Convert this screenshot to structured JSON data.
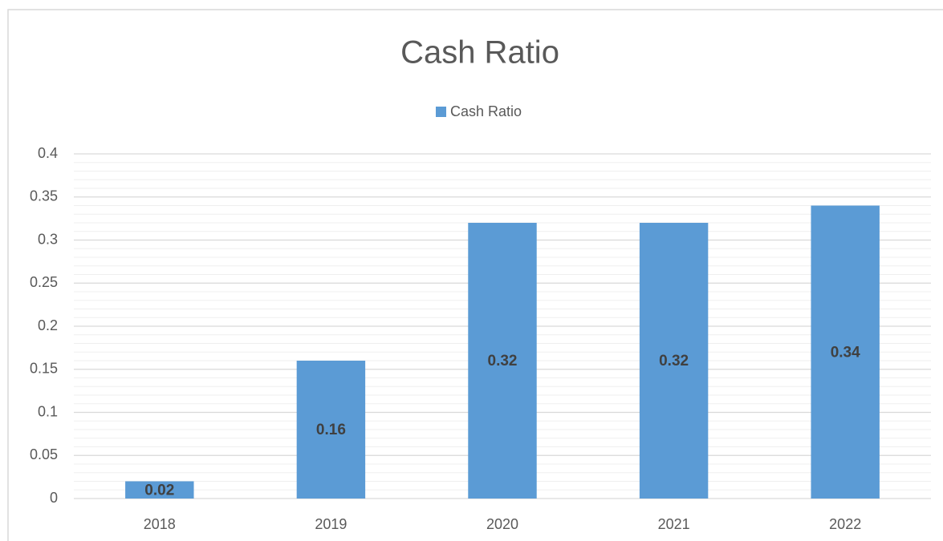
{
  "chart_data": {
    "type": "bar",
    "title": "Cash Ratio",
    "legend": "Cash Ratio",
    "categories": [
      "2018",
      "2019",
      "2020",
      "2021",
      "2022"
    ],
    "values": [
      0.02,
      0.16,
      0.32,
      0.32,
      0.34
    ],
    "color": "#5b9bd5",
    "ylim": [
      0,
      0.4
    ],
    "yticks": [
      0,
      0.05,
      0.1,
      0.15,
      0.2,
      0.25,
      0.3,
      0.35,
      0.4
    ],
    "grid": true,
    "minor_grid": true,
    "legend_position": "top",
    "data_labels": true
  }
}
